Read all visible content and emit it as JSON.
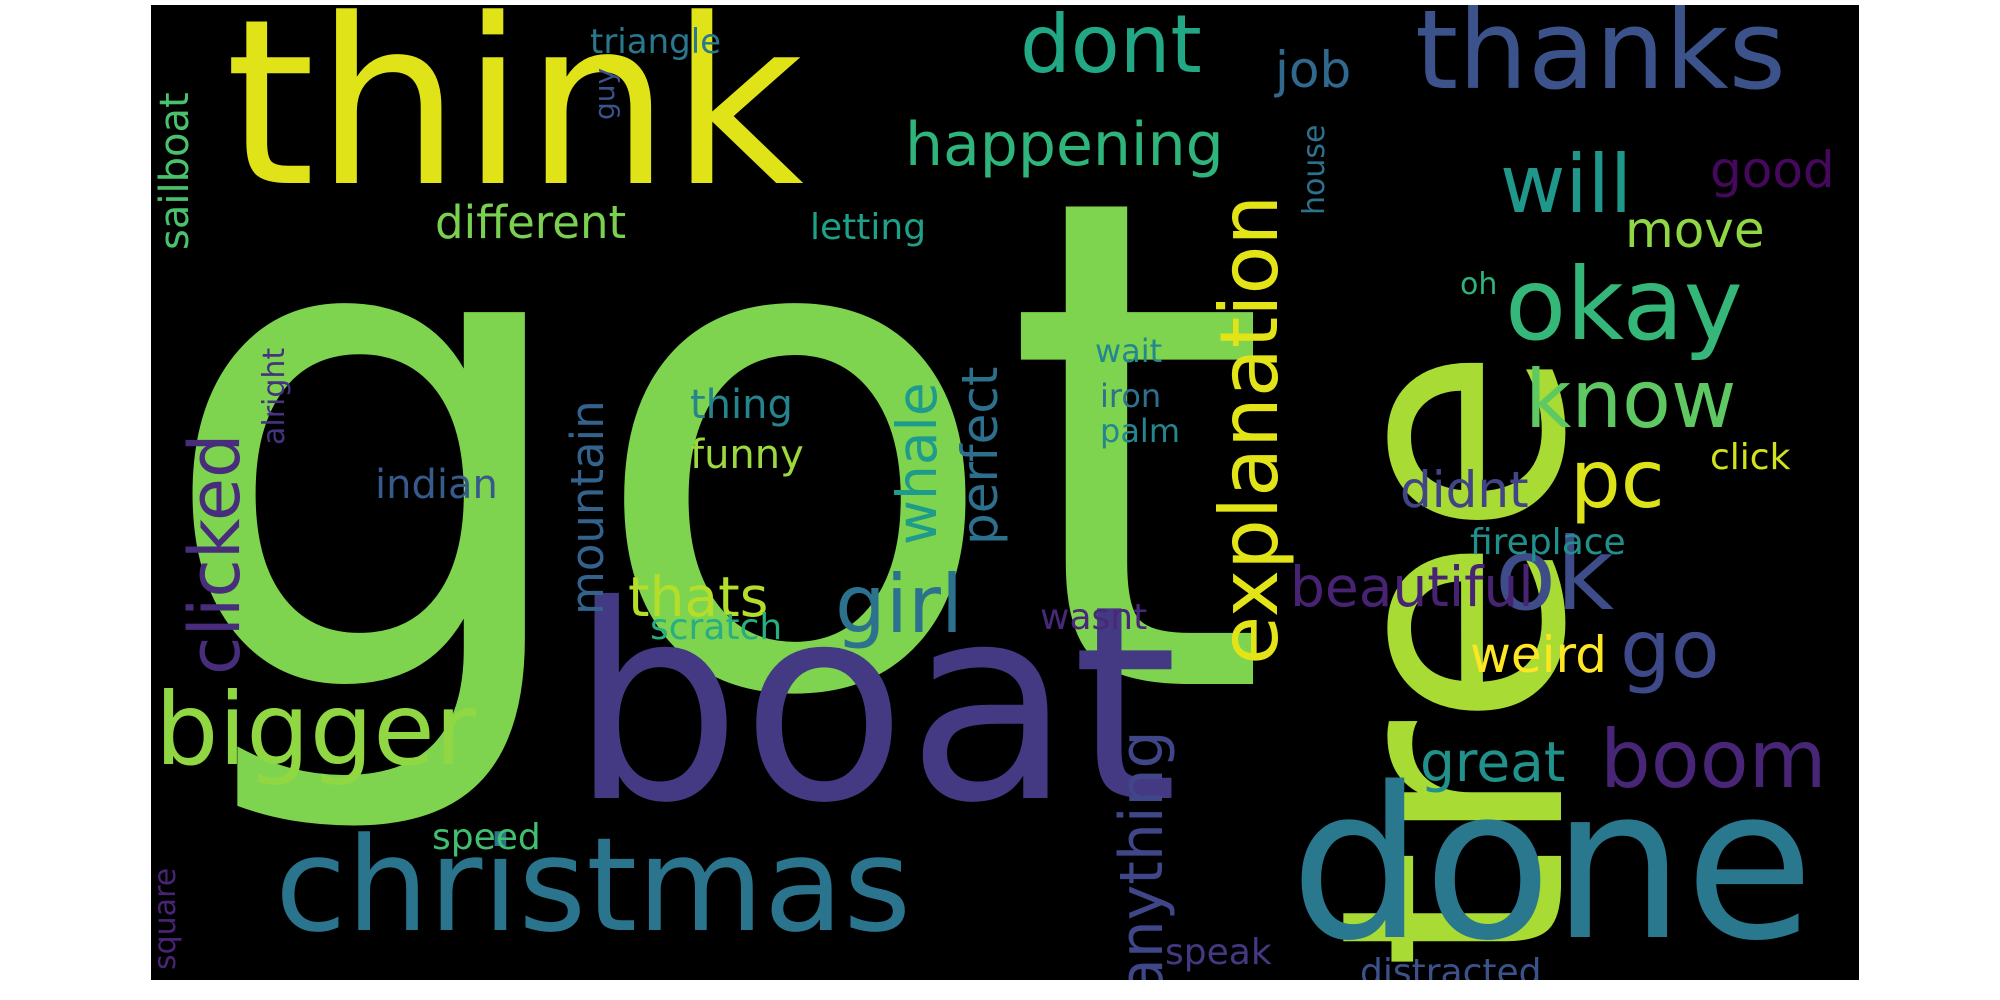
{
  "word_cloud": {
    "background": "#000000",
    "words": [
      {
        "text": "got",
        "color": "#7ed34f"
      },
      {
        "text": "boat",
        "color": "#443a83"
      },
      {
        "text": "tree",
        "color": "#a8db34"
      },
      {
        "text": "think",
        "color": "#dfe318"
      },
      {
        "text": "done",
        "color": "#2a788e"
      },
      {
        "text": "christmas",
        "color": "#2b748e"
      },
      {
        "text": "thanks",
        "color": "#3b528b"
      },
      {
        "text": "bigger",
        "color": "#90d743"
      },
      {
        "text": "okay",
        "color": "#35b779"
      },
      {
        "text": "explanation",
        "color": "#e2e418"
      },
      {
        "text": "ok",
        "color": "#3e4c8a"
      },
      {
        "text": "know",
        "color": "#5ec962"
      },
      {
        "text": "boom",
        "color": "#482576"
      },
      {
        "text": "will",
        "color": "#1f988b"
      },
      {
        "text": "dont",
        "color": "#22a884"
      },
      {
        "text": "girl",
        "color": "#2c728e"
      },
      {
        "text": "go",
        "color": "#3e4989"
      },
      {
        "text": "pc",
        "color": "#dde318"
      },
      {
        "text": "clicked",
        "color": "#472d7b"
      },
      {
        "text": "happening",
        "color": "#2fb47c"
      },
      {
        "text": "mountain",
        "color": "#33638d"
      },
      {
        "text": "thats",
        "color": "#b5de2b"
      },
      {
        "text": "anything",
        "color": "#3f4788"
      },
      {
        "text": "whale",
        "color": "#1e9b8a"
      },
      {
        "text": "perfect",
        "color": "#2d708e"
      },
      {
        "text": "beautiful",
        "color": "#482374"
      },
      {
        "text": "great",
        "color": "#21918c"
      },
      {
        "text": "good",
        "color": "#46085c"
      },
      {
        "text": "move",
        "color": "#8fd744"
      },
      {
        "text": "didnt",
        "color": "#414487"
      },
      {
        "text": "different",
        "color": "#7ad151"
      },
      {
        "text": "sailboat",
        "color": "#4ac16d"
      },
      {
        "text": "weird",
        "color": "#fde725"
      },
      {
        "text": "job",
        "color": "#31688e"
      },
      {
        "text": "thing",
        "color": "#25848e"
      },
      {
        "text": "funny",
        "color": "#9bd93c"
      },
      {
        "text": "indian",
        "color": "#38598c"
      },
      {
        "text": "letting",
        "color": "#1fa088"
      },
      {
        "text": "click",
        "color": "#d2e21b"
      },
      {
        "text": "fireplace",
        "color": "#21908d"
      },
      {
        "text": "scratch",
        "color": "#28ae80"
      },
      {
        "text": "wasnt",
        "color": "#482878"
      },
      {
        "text": "speed",
        "color": "#42be71"
      },
      {
        "text": "distracted",
        "color": "#3b528b"
      },
      {
        "text": "speak",
        "color": "#453882"
      },
      {
        "text": "triangle",
        "color": "#2a788e"
      },
      {
        "text": "guy",
        "color": "#3b528b"
      },
      {
        "text": "house",
        "color": "#2c728e"
      },
      {
        "text": "oh",
        "color": "#2eb37c"
      },
      {
        "text": "wait",
        "color": "#23888e"
      },
      {
        "text": "iron",
        "color": "#2c728e"
      },
      {
        "text": "palm",
        "color": "#24868e"
      },
      {
        "text": "alright",
        "color": "#46337f"
      },
      {
        "text": "square",
        "color": "#482475"
      }
    ]
  }
}
